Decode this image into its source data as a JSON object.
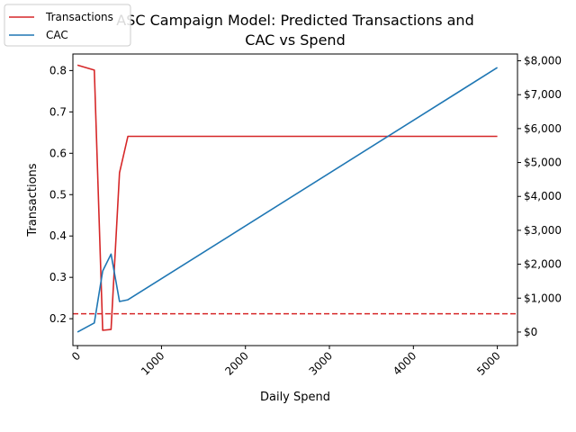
{
  "chart_data": {
    "type": "line",
    "title_line1": "ASC Campaign Model: Predicted Transactions and",
    "title_line2": "CAC vs Spend",
    "title_prefix_hidden": "ASC",
    "xlabel": "Daily Spend",
    "ylabel_left": "Transactions",
    "ylabel_right": "",
    "xlim": [
      -55,
      5240
    ],
    "ylim_left": [
      0.135,
      0.84
    ],
    "ylim_right": [
      -400,
      8200
    ],
    "x_ticks": [
      0,
      1000,
      2000,
      3000,
      4000,
      5000
    ],
    "y_left_ticks": [
      0.2,
      0.3,
      0.4,
      0.5,
      0.6,
      0.7,
      0.8
    ],
    "y_left_tick_labels": [
      "0.2",
      "0.3",
      "0.4",
      "0.5",
      "0.6",
      "0.7",
      "0.8"
    ],
    "y_right_ticks": [
      0,
      1000,
      2000,
      3000,
      4000,
      5000,
      6000,
      7000,
      8000
    ],
    "y_right_tick_labels": [
      "$0",
      "$1,000",
      "$2,000",
      "$3,000",
      "$4,000",
      "$5,000",
      "$6,000",
      "$7,000",
      "$8,000"
    ],
    "reference_line": {
      "axis": "left",
      "y": 0.212,
      "color": "#d62728",
      "style": "dashed"
    },
    "legend_position": "top-left",
    "series": [
      {
        "name": "Transactions",
        "axis": "left",
        "color": "#d62728",
        "x": [
          0,
          200,
          300,
          400,
          500,
          600,
          5000
        ],
        "y": [
          0.813,
          0.801,
          0.172,
          0.174,
          0.553,
          0.641,
          0.641
        ]
      },
      {
        "name": "CAC",
        "axis": "right",
        "color": "#1f77b4",
        "x": [
          0,
          200,
          300,
          400,
          500,
          600,
          5000
        ],
        "y": [
          0,
          270,
          1800,
          2300,
          900,
          950,
          7800
        ]
      }
    ]
  }
}
